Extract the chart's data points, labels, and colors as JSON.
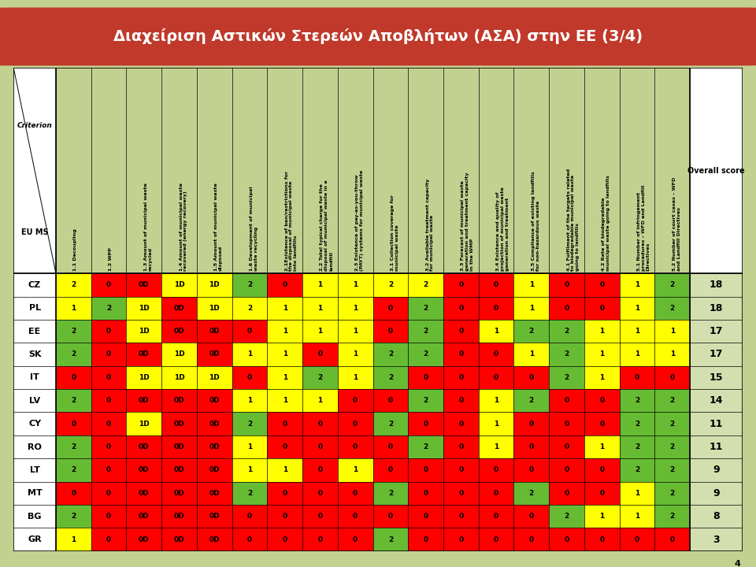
{
  "title": "Διαχείριση Αστικών Στερεών Αποβλήτων (ΑΣΑ) στην ΕΕ (3/4)",
  "title_bg": "#C0392B",
  "outer_bg": "#C2D190",
  "table_bg": "#EBEBEB",
  "col_headers": [
    "1.1 Decoupling",
    "1.2 WPP",
    "1.3 Amount of municipal waste\nrecycled",
    "1.4 Amount of municipal waste\nrecovered (energy recovery)",
    "1.5 Amount of municipal waste\ndisposed",
    "1.6 Development of municipal\nwaste recycling",
    "2.1Existence of ban/restrictions for\nthe disposal of municipal waste\ninto landfills",
    "2.2 Total typical charge for the\ndisposal of municipal waste in a\nlandfill",
    "2.3 Existence of pay-as-you-throw\n(PAYT) systems for municipal waste",
    "3.1 Collection coverage for\nmunicipal waste",
    "3.2 Available treatment capacity\nfor municipal waste",
    "3.3 Forecast of municipal waste\ngeneration and treatment capacity\nin the WMP",
    "3.4 Existence and quality of\nprojection of municipal waste\ngeneration and treatment",
    "3.5 Compliance of existing landfills\nfor non-hazardous waste",
    "4.1 Fulfilment of the targets related\nto biodegradable municipal waste\ngoing to landfills",
    "4.2 Rate of biodegradable\nmunicipal waste going to landfills",
    "5.1 Number of infringement\nprocedures – WFD and Landfill\nDirectives",
    "5.2 Number of court cases – WFD\nand Landfill Directives"
  ],
  "countries": [
    "CZ",
    "PL",
    "EE",
    "SK",
    "IT",
    "LV",
    "CY",
    "RO",
    "LT",
    "MT",
    "BG",
    "GR"
  ],
  "overall_scores": [
    18,
    18,
    17,
    17,
    15,
    14,
    11,
    11,
    9,
    9,
    8,
    3
  ],
  "table_values": [
    [
      "2",
      "0",
      "0D",
      "1D",
      "1D",
      "2",
      "0",
      "1",
      "1",
      "2",
      "2",
      "0",
      "0",
      "1",
      "0",
      "0",
      "1",
      "2"
    ],
    [
      "1",
      "2",
      "1D",
      "0D",
      "1D",
      "2",
      "1",
      "1",
      "1",
      "0",
      "2",
      "0",
      "0",
      "1",
      "0",
      "0",
      "1",
      "2"
    ],
    [
      "2",
      "0",
      "1D",
      "0D",
      "0D",
      "0",
      "1",
      "1",
      "1",
      "0",
      "2",
      "0",
      "1",
      "2",
      "2",
      "1",
      "1",
      "1"
    ],
    [
      "2",
      "0",
      "0D",
      "1D",
      "0D",
      "1",
      "1",
      "0",
      "1",
      "2",
      "2",
      "0",
      "0",
      "1",
      "2",
      "1",
      "1",
      "1"
    ],
    [
      "0",
      "0",
      "1D",
      "1D",
      "1D",
      "0",
      "1",
      "2",
      "1",
      "2",
      "0",
      "0",
      "0",
      "0",
      "2",
      "1",
      "0",
      "0"
    ],
    [
      "2",
      "0",
      "0D",
      "0D",
      "0D",
      "1",
      "1",
      "1",
      "0",
      "0",
      "2",
      "0",
      "1",
      "2",
      "0",
      "0",
      "2",
      "2"
    ],
    [
      "0",
      "0",
      "1D",
      "0D",
      "0D",
      "2",
      "0",
      "0",
      "0",
      "2",
      "0",
      "0",
      "1",
      "0",
      "0",
      "0",
      "2",
      "2"
    ],
    [
      "2",
      "0",
      "0D",
      "0D",
      "0D",
      "1",
      "0",
      "0",
      "0",
      "0",
      "2",
      "0",
      "1",
      "0",
      "0",
      "1",
      "2",
      "2"
    ],
    [
      "2",
      "0",
      "0D",
      "0D",
      "0D",
      "1",
      "1",
      "0",
      "1",
      "0",
      "0",
      "0",
      "0",
      "0",
      "0",
      "0",
      "2",
      "2"
    ],
    [
      "0",
      "0",
      "0D",
      "0D",
      "0D",
      "2",
      "0",
      "0",
      "0",
      "2",
      "0",
      "0",
      "0",
      "2",
      "0",
      "0",
      "1",
      "2"
    ],
    [
      "2",
      "0",
      "0D",
      "0D",
      "0D",
      "0",
      "0",
      "0",
      "0",
      "0",
      "0",
      "0",
      "0",
      "0",
      "2",
      "1",
      "1",
      "2"
    ],
    [
      "1",
      "0",
      "0D",
      "0D",
      "0D",
      "0",
      "0",
      "0",
      "0",
      "2",
      "0",
      "0",
      "0",
      "0",
      "0",
      "0",
      "0",
      "0"
    ]
  ],
  "cell_colors": [
    [
      "#FFFF00",
      "#FF0000",
      "#FF0000",
      "#FFFF00",
      "#FFFF00",
      "#66BB33",
      "#FF0000",
      "#FFFF00",
      "#FFFF00",
      "#FFFF00",
      "#FFFF00",
      "#FF0000",
      "#FF0000",
      "#FFFF00",
      "#FF0000",
      "#FF0000",
      "#FFFF00",
      "#66BB33"
    ],
    [
      "#FFFF00",
      "#66BB33",
      "#FFFF00",
      "#FF0000",
      "#FFFF00",
      "#FFFF00",
      "#FFFF00",
      "#FFFF00",
      "#FFFF00",
      "#FF0000",
      "#66BB33",
      "#FF0000",
      "#FF0000",
      "#FFFF00",
      "#FF0000",
      "#FF0000",
      "#FFFF00",
      "#66BB33"
    ],
    [
      "#66BB33",
      "#FF0000",
      "#FFFF00",
      "#FF0000",
      "#FF0000",
      "#FF0000",
      "#FFFF00",
      "#FFFF00",
      "#FFFF00",
      "#FF0000",
      "#66BB33",
      "#FF0000",
      "#FFFF00",
      "#66BB33",
      "#66BB33",
      "#FFFF00",
      "#FFFF00",
      "#FFFF00"
    ],
    [
      "#66BB33",
      "#FF0000",
      "#FF0000",
      "#FFFF00",
      "#FF0000",
      "#FFFF00",
      "#FFFF00",
      "#FF0000",
      "#FFFF00",
      "#66BB33",
      "#66BB33",
      "#FF0000",
      "#FF0000",
      "#FFFF00",
      "#66BB33",
      "#FFFF00",
      "#FFFF00",
      "#FFFF00"
    ],
    [
      "#FF0000",
      "#FF0000",
      "#FFFF00",
      "#FFFF00",
      "#FFFF00",
      "#FF0000",
      "#FFFF00",
      "#66BB33",
      "#FFFF00",
      "#66BB33",
      "#FF0000",
      "#FF0000",
      "#FF0000",
      "#FF0000",
      "#66BB33",
      "#FFFF00",
      "#FF0000",
      "#FF0000"
    ],
    [
      "#66BB33",
      "#FF0000",
      "#FF0000",
      "#FF0000",
      "#FF0000",
      "#FFFF00",
      "#FFFF00",
      "#FFFF00",
      "#FF0000",
      "#FF0000",
      "#66BB33",
      "#FF0000",
      "#FFFF00",
      "#66BB33",
      "#FF0000",
      "#FF0000",
      "#66BB33",
      "#66BB33"
    ],
    [
      "#FF0000",
      "#FF0000",
      "#FFFF00",
      "#FF0000",
      "#FF0000",
      "#66BB33",
      "#FF0000",
      "#FF0000",
      "#FF0000",
      "#66BB33",
      "#FF0000",
      "#FF0000",
      "#FFFF00",
      "#FF0000",
      "#FF0000",
      "#FF0000",
      "#66BB33",
      "#66BB33"
    ],
    [
      "#66BB33",
      "#FF0000",
      "#FF0000",
      "#FF0000",
      "#FF0000",
      "#FFFF00",
      "#FF0000",
      "#FF0000",
      "#FF0000",
      "#FF0000",
      "#66BB33",
      "#FF0000",
      "#FFFF00",
      "#FF0000",
      "#FF0000",
      "#FFFF00",
      "#66BB33",
      "#66BB33"
    ],
    [
      "#66BB33",
      "#FF0000",
      "#FF0000",
      "#FF0000",
      "#FF0000",
      "#FFFF00",
      "#FFFF00",
      "#FF0000",
      "#FFFF00",
      "#FF0000",
      "#FF0000",
      "#FF0000",
      "#FF0000",
      "#FF0000",
      "#FF0000",
      "#FF0000",
      "#66BB33",
      "#66BB33"
    ],
    [
      "#FF0000",
      "#FF0000",
      "#FF0000",
      "#FF0000",
      "#FF0000",
      "#66BB33",
      "#FF0000",
      "#FF0000",
      "#FF0000",
      "#66BB33",
      "#FF0000",
      "#FF0000",
      "#FF0000",
      "#66BB33",
      "#FF0000",
      "#FF0000",
      "#FFFF00",
      "#66BB33"
    ],
    [
      "#66BB33",
      "#FF0000",
      "#FF0000",
      "#FF0000",
      "#FF0000",
      "#FF0000",
      "#FF0000",
      "#FF0000",
      "#FF0000",
      "#FF0000",
      "#FF0000",
      "#FF0000",
      "#FF0000",
      "#FF0000",
      "#66BB33",
      "#FFFF00",
      "#FFFF00",
      "#66BB33"
    ],
    [
      "#FFFF00",
      "#FF0000",
      "#FF0000",
      "#FF0000",
      "#FF0000",
      "#FF0000",
      "#FF0000",
      "#FF0000",
      "#FF0000",
      "#66BB33",
      "#FF0000",
      "#FF0000",
      "#FF0000",
      "#FF0000",
      "#FF0000",
      "#FF0000",
      "#FF0000",
      "#FF0000"
    ]
  ],
  "overall_bg": "#D4DFB0",
  "row_alt_bg": [
    "#F5F5F5",
    "#EFEFEF"
  ],
  "title_fontsize": 14,
  "page_num": "4"
}
